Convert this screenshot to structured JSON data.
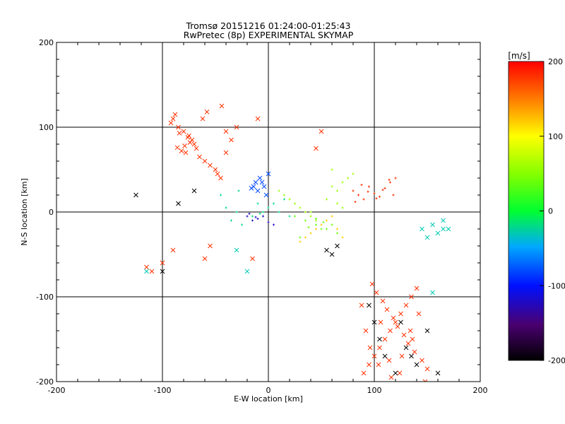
{
  "title_line1": "Tromsø 20151216 01:24:00-01:25:43",
  "title_line2": "RwPretec (8p) EXPERIMENTAL SKYMAP",
  "chart_data": {
    "type": "scatter",
    "xlabel": "E-W location [km]",
    "ylabel": "N-S location [km]",
    "xlim": [
      -200,
      200
    ],
    "ylim": [
      -200,
      200
    ],
    "xticks": [
      "-200",
      "-100",
      "0",
      "100",
      "200"
    ],
    "yticks": [
      "-200",
      "-100",
      "0",
      "100",
      "200"
    ],
    "grid": true,
    "colorbar": {
      "label": "[m/s]",
      "range": [
        -200,
        200
      ],
      "ticks": [
        "200",
        "100",
        "0",
        "-100",
        "-200"
      ],
      "colormap": "black-purple-blue-cyan-green-yellow-red"
    },
    "clusters": [
      {
        "velocity": 180,
        "marker": "x",
        "x": [
          -90,
          -85,
          -80,
          -75,
          -72,
          -70,
          -68,
          -78,
          -82,
          -65,
          -60,
          -55,
          -50,
          -48,
          -45,
          -40,
          -35,
          -30,
          -88,
          -92,
          -84,
          -76,
          -74,
          -79,
          -86,
          -62,
          -58,
          -44
        ],
        "y": [
          110,
          100,
          95,
          90,
          85,
          80,
          75,
          70,
          72,
          65,
          60,
          55,
          50,
          45,
          40,
          70,
          85,
          100,
          115,
          105,
          93,
          88,
          82,
          78,
          76,
          110,
          118,
          125
        ]
      },
      {
        "velocity": 180,
        "marker": "x",
        "x": [
          90,
          95,
          100,
          105,
          110,
          115,
          120,
          125,
          130,
          135,
          140,
          98,
          102,
          108,
          112,
          118,
          122,
          128,
          132,
          138,
          145,
          150,
          92,
          96,
          104,
          116,
          126,
          136,
          142,
          148,
          88,
          106,
          114,
          124,
          134
        ],
        "y": [
          -190,
          -180,
          -170,
          -160,
          -150,
          -140,
          -130,
          -120,
          -110,
          -100,
          -90,
          -85,
          -95,
          -105,
          -115,
          -125,
          -135,
          -145,
          -155,
          -165,
          -175,
          -185,
          -140,
          -160,
          -180,
          -195,
          -170,
          -150,
          -120,
          -200,
          -110,
          -130,
          -175,
          -190,
          -140
        ]
      },
      {
        "velocity": 180,
        "marker": "+",
        "x": [
          80,
          85,
          90,
          95,
          100,
          105,
          110,
          115,
          120,
          82,
          88,
          94,
          102,
          108,
          114,
          118
        ],
        "y": [
          25,
          20,
          15,
          30,
          22,
          18,
          28,
          35,
          40,
          12,
          32,
          24,
          16,
          26,
          38,
          20
        ]
      },
      {
        "velocity": 180,
        "marker": "x",
        "x": [
          -115,
          -110,
          -100,
          -90,
          -60,
          -55,
          -40,
          -15,
          -10,
          50,
          45
        ],
        "y": [
          -65,
          -70,
          -60,
          -45,
          -55,
          -40,
          95,
          -55,
          110,
          95,
          75
        ]
      },
      {
        "velocity": 60,
        "marker": "+",
        "x": [
          10,
          15,
          20,
          25,
          30,
          35,
          40,
          45,
          50,
          55,
          60,
          65,
          70,
          75,
          80,
          60,
          55,
          65,
          70,
          40
        ],
        "y": [
          25,
          20,
          15,
          10,
          5,
          0,
          -5,
          -10,
          -15,
          -20,
          30,
          25,
          35,
          40,
          45,
          50,
          15,
          10,
          5,
          0
        ]
      },
      {
        "velocity": 40,
        "marker": "+",
        "x": [
          25,
          35,
          45,
          55,
          65,
          30,
          40,
          50,
          60,
          45,
          52,
          38
        ],
        "y": [
          -5,
          -10,
          -15,
          -20,
          -25,
          -30,
          -25,
          -20,
          -15,
          -8,
          -12,
          -18
        ]
      },
      {
        "velocity": 120,
        "marker": "+",
        "x": [
          30,
          35,
          40,
          45,
          50,
          55,
          60,
          65,
          70
        ],
        "y": [
          -35,
          -30,
          -25,
          -20,
          -15,
          -10,
          -5,
          -20,
          -30
        ]
      },
      {
        "velocity": -20,
        "marker": "+",
        "x": [
          -40,
          -30,
          -20,
          -10,
          0,
          10,
          20,
          -35,
          -25,
          -15,
          -5,
          5,
          15,
          -45,
          -28,
          -8
        ],
        "y": [
          5,
          0,
          -5,
          10,
          5,
          0,
          -5,
          -10,
          -15,
          -5,
          0,
          10,
          15,
          20,
          25,
          -2
        ]
      },
      {
        "velocity": -80,
        "marker": "x",
        "x": [
          -12,
          -8,
          -4,
          0,
          -10,
          -6,
          -2,
          -14,
          -16
        ],
        "y": [
          35,
          40,
          30,
          45,
          25,
          35,
          20,
          30,
          28
        ]
      },
      {
        "velocity": -120,
        "marker": "+",
        "x": [
          -20,
          -15,
          -10,
          -5,
          0,
          5,
          -18,
          -12
        ],
        "y": [
          -5,
          -10,
          -8,
          -5,
          -12,
          -15,
          -2,
          -6
        ]
      },
      {
        "velocity": -30,
        "marker": "x",
        "x": [
          145,
          150,
          155,
          160,
          165,
          170,
          -115,
          -30,
          -20,
          155,
          165
        ],
        "y": [
          -20,
          -30,
          -15,
          -25,
          -10,
          -20,
          -70,
          -45,
          -70,
          -95,
          -20
        ]
      },
      {
        "velocity": -200,
        "marker": "x",
        "x": [
          -125,
          -100,
          -85,
          -70,
          55,
          60,
          65,
          95,
          100,
          105,
          110,
          120,
          130,
          140,
          150,
          160,
          125,
          135
        ],
        "y": [
          20,
          -70,
          10,
          25,
          -45,
          -50,
          -40,
          -110,
          -130,
          -150,
          -170,
          -190,
          -160,
          -180,
          -140,
          -190,
          -130,
          -170
        ]
      }
    ]
  }
}
